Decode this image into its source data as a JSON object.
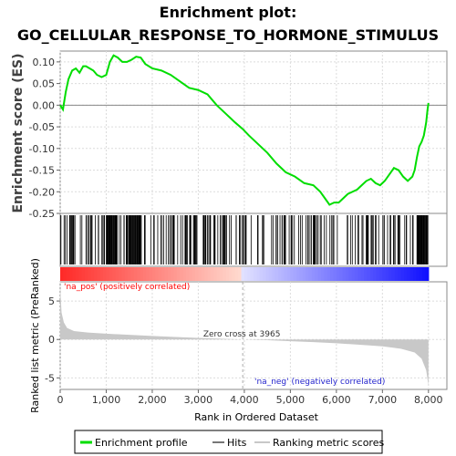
{
  "title_line1": "Enrichment plot:",
  "title_line2": "GO_CELLULAR_RESPONSE_TO_HORMONE_STIMULUS",
  "colors": {
    "es_line": "#00dd00",
    "hits": "#000000",
    "metric_fill": "#c8c8c8",
    "pos_text": "#ff0000",
    "neg_text": "#0000cc",
    "grid": "#dcdcdc"
  },
  "chart_data": {
    "type": "line",
    "es_panel": {
      "ylabel": "Enrichment score (ES)",
      "yticks": [
        "0.10",
        "0.05",
        "0.00",
        "-0.05",
        "-0.10",
        "-0.15",
        "-0.20",
        "-0.25"
      ],
      "ylim": [
        -0.25,
        0.125
      ],
      "xlim": [
        0,
        8400
      ],
      "grid": true,
      "points": [
        [
          0,
          0.0
        ],
        [
          60,
          -0.01
        ],
        [
          120,
          0.03
        ],
        [
          180,
          0.06
        ],
        [
          260,
          0.08
        ],
        [
          340,
          0.085
        ],
        [
          420,
          0.075
        ],
        [
          500,
          0.09
        ],
        [
          560,
          0.09
        ],
        [
          640,
          0.085
        ],
        [
          720,
          0.08
        ],
        [
          800,
          0.07
        ],
        [
          900,
          0.065
        ],
        [
          1000,
          0.07
        ],
        [
          1080,
          0.1
        ],
        [
          1160,
          0.115
        ],
        [
          1250,
          0.11
        ],
        [
          1350,
          0.1
        ],
        [
          1450,
          0.1
        ],
        [
          1550,
          0.105
        ],
        [
          1650,
          0.112
        ],
        [
          1750,
          0.11
        ],
        [
          1850,
          0.095
        ],
        [
          2000,
          0.085
        ],
        [
          2200,
          0.08
        ],
        [
          2400,
          0.07
        ],
        [
          2600,
          0.055
        ],
        [
          2800,
          0.04
        ],
        [
          3000,
          0.035
        ],
        [
          3200,
          0.025
        ],
        [
          3400,
          0.0
        ],
        [
          3600,
          -0.02
        ],
        [
          3800,
          -0.04
        ],
        [
          3965,
          -0.055
        ],
        [
          4100,
          -0.07
        ],
        [
          4300,
          -0.09
        ],
        [
          4500,
          -0.11
        ],
        [
          4700,
          -0.135
        ],
        [
          4900,
          -0.155
        ],
        [
          5100,
          -0.165
        ],
        [
          5300,
          -0.18
        ],
        [
          5500,
          -0.185
        ],
        [
          5650,
          -0.2
        ],
        [
          5750,
          -0.215
        ],
        [
          5850,
          -0.23
        ],
        [
          5950,
          -0.225
        ],
        [
          6050,
          -0.225
        ],
        [
          6150,
          -0.215
        ],
        [
          6250,
          -0.205
        ],
        [
          6350,
          -0.2
        ],
        [
          6450,
          -0.195
        ],
        [
          6550,
          -0.185
        ],
        [
          6650,
          -0.175
        ],
        [
          6750,
          -0.17
        ],
        [
          6850,
          -0.18
        ],
        [
          6950,
          -0.185
        ],
        [
          7050,
          -0.175
        ],
        [
          7150,
          -0.16
        ],
        [
          7250,
          -0.145
        ],
        [
          7350,
          -0.15
        ],
        [
          7450,
          -0.165
        ],
        [
          7550,
          -0.175
        ],
        [
          7650,
          -0.165
        ],
        [
          7700,
          -0.15
        ],
        [
          7750,
          -0.12
        ],
        [
          7800,
          -0.095
        ],
        [
          7850,
          -0.085
        ],
        [
          7900,
          -0.07
        ],
        [
          7950,
          -0.04
        ],
        [
          7980,
          -0.01
        ],
        [
          8000,
          0.005
        ]
      ]
    },
    "metric_panel": {
      "ylabel": "Ranked list metric (PreRanked)",
      "yticks": [
        "5",
        "0",
        "-5"
      ],
      "ylim": [
        -6.5,
        7.5
      ],
      "xlim": [
        0,
        8400
      ],
      "xlabel": "Rank in Ordered Dataset",
      "xticks": [
        "0",
        "1,000",
        "2,000",
        "3,000",
        "4,000",
        "5,000",
        "6,000",
        "7,000",
        "8,000"
      ],
      "zero_cross_label": "Zero cross at 3965",
      "zero_cross": 3965,
      "pos_label": "'na_pos' (positively correlated)",
      "neg_label": "'na_neg' (negatively correlated)",
      "points": [
        [
          0,
          6.8
        ],
        [
          30,
          3.5
        ],
        [
          80,
          2.2
        ],
        [
          150,
          1.5
        ],
        [
          300,
          1.1
        ],
        [
          600,
          0.9
        ],
        [
          1000,
          0.75
        ],
        [
          1500,
          0.6
        ],
        [
          2000,
          0.45
        ],
        [
          2500,
          0.32
        ],
        [
          3000,
          0.2
        ],
        [
          3500,
          0.1
        ],
        [
          3965,
          0.0
        ],
        [
          4500,
          -0.1
        ],
        [
          5000,
          -0.22
        ],
        [
          5500,
          -0.35
        ],
        [
          6000,
          -0.5
        ],
        [
          6500,
          -0.68
        ],
        [
          7000,
          -0.9
        ],
        [
          7400,
          -1.2
        ],
        [
          7700,
          -1.7
        ],
        [
          7850,
          -2.5
        ],
        [
          7950,
          -4.0
        ],
        [
          8000,
          -6.0
        ]
      ]
    },
    "hits_band": {
      "total_ranks": 8000,
      "dense_ranges": [
        [
          1000,
          1250
        ],
        [
          1500,
          1750
        ],
        [
          7750,
          8000
        ]
      ],
      "hit_count_estimate": 240
    }
  },
  "legend": {
    "items": [
      {
        "label": "Enrichment profile",
        "swatch": "line-green"
      },
      {
        "label": "Hits",
        "swatch": "line-gray"
      },
      {
        "label": "Ranking metric scores",
        "swatch": "line-light"
      }
    ]
  }
}
